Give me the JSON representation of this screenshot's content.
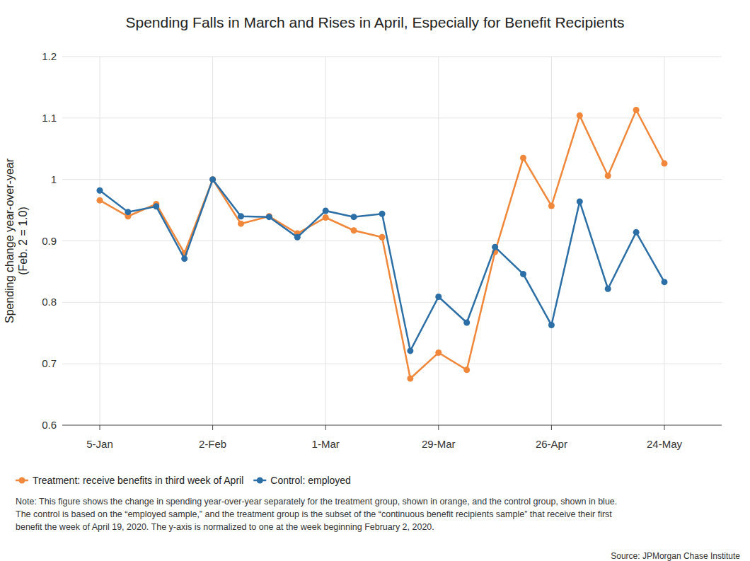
{
  "chart_data": {
    "type": "line",
    "title": "Spending Falls in March and Rises in April, Especially for Benefit Recipients",
    "y_label": [
      "Spending change year-over-year",
      "(Feb. 2 = 1.0)"
    ],
    "categories": [
      "5-Jan",
      null,
      null,
      null,
      "2-Feb",
      null,
      null,
      null,
      "1-Mar",
      null,
      null,
      null,
      "29-Mar",
      null,
      null,
      null,
      "26-Apr",
      null,
      null,
      null,
      "24-May"
    ],
    "series": [
      {
        "name": "Treatment: receive benefits in third week of April",
        "color": "#f0873a",
        "marker": "circle",
        "values": [
          0.966,
          0.94,
          0.96,
          0.88,
          1.0,
          0.928,
          0.94,
          0.912,
          0.938,
          0.917,
          0.906,
          0.676,
          0.718,
          0.69,
          0.882,
          1.035,
          0.957,
          1.104,
          1.006,
          1.113,
          1.026
        ]
      },
      {
        "name": "Control: employed",
        "color": "#2c6ea6",
        "marker": "circle",
        "values": [
          0.982,
          0.947,
          0.956,
          0.871,
          1.0,
          0.94,
          0.939,
          0.906,
          0.949,
          0.939,
          0.944,
          0.721,
          0.809,
          0.767,
          0.89,
          0.846,
          0.763,
          0.964,
          0.822,
          0.914,
          0.833
        ]
      }
    ],
    "ylim": [
      0.6,
      1.2
    ],
    "yticks": [
      0.6,
      0.7,
      0.8,
      0.9,
      1,
      1.1,
      1.2
    ],
    "grid": true,
    "legend": "bottom",
    "note": [
      "Note: This figure shows the change in spending year-over-year separately for the treatment group, shown in orange, and the control group, shown in blue.",
      "The control is based on the “employed sample,” and the treatment group is the subset of the “continuous benefit recipients sample” that receive their first",
      "benefit the week of April 19, 2020. The y-axis is normalized to one at the week beginning February 2, 2020."
    ],
    "source": "Source: JPMorgan Chase Institute"
  }
}
